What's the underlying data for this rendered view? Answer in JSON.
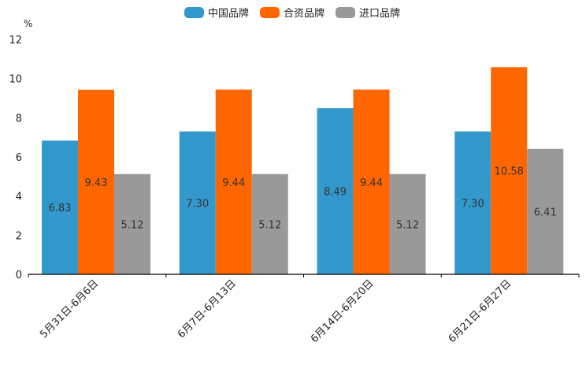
{
  "chart_data": {
    "type": "bar",
    "title": "",
    "xlabel": "",
    "ylabel": "%",
    "ylim": [
      0,
      12
    ],
    "yticks": [
      0,
      2,
      4,
      6,
      8,
      10,
      12
    ],
    "grid": false,
    "legend_position": "top-center",
    "categories": [
      "5月31日-6月6日",
      "6月7日-6月13日",
      "6月14日-6月20日",
      "6月21日-6月27日"
    ],
    "series": [
      {
        "name": "中国品牌",
        "color": "#3398CC",
        "values": [
          6.83,
          7.3,
          8.49,
          7.3
        ],
        "labels": [
          "6.83",
          "7.30",
          "8.49",
          "7.30"
        ]
      },
      {
        "name": "合资品牌",
        "color": "#FF6600",
        "values": [
          9.43,
          9.44,
          9.44,
          10.58
        ],
        "labels": [
          "9.43",
          "9.44",
          "9.44",
          "10.58"
        ]
      },
      {
        "name": "进口品牌",
        "color": "#999999",
        "values": [
          5.12,
          5.12,
          5.12,
          6.41
        ],
        "labels": [
          "5.12",
          "5.12",
          "5.12",
          "6.41"
        ]
      }
    ]
  }
}
